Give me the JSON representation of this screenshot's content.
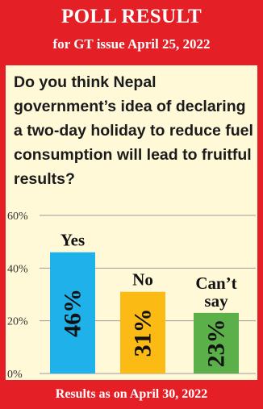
{
  "header": {
    "title": "POLL RESULT",
    "subtitle": "for GT issue April 25, 2022"
  },
  "question": "Do you think Nepal government’s idea of declaring a two-day holiday to reduce fuel consumption will lead to fruitful results?",
  "footer": "Results as on April 30, 2022",
  "colors": {
    "frame": "#e41f26",
    "panel": "#fff9d8",
    "yes": "#1fb2ea",
    "no": "#fbbb14",
    "cant_say": "#5cb04a"
  },
  "chart_data": {
    "type": "bar",
    "categories": [
      "Yes",
      "No",
      "Can’t say"
    ],
    "values": [
      46,
      31,
      23
    ],
    "value_labels": [
      "46%",
      "31%",
      "23%"
    ],
    "ylim": [
      0,
      60
    ],
    "yticks": [
      0,
      20,
      40,
      60
    ],
    "ytick_labels": [
      "0%",
      "20%",
      "40%",
      "60%"
    ],
    "grid": true
  }
}
